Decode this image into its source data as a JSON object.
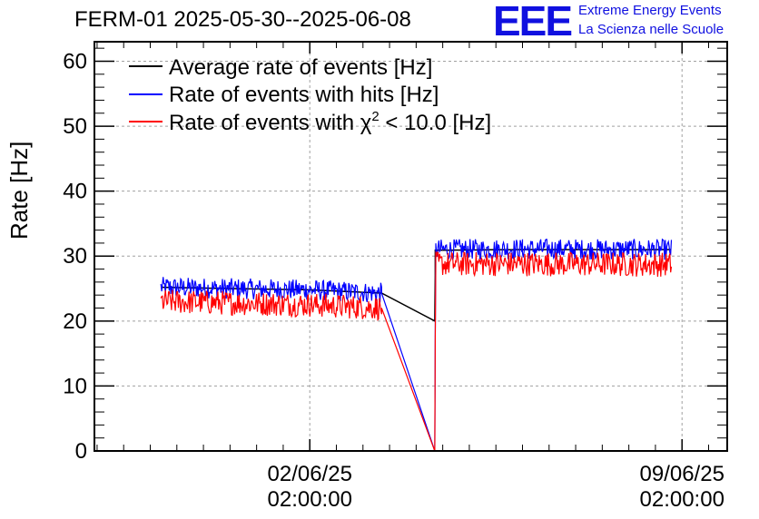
{
  "chart_data": {
    "type": "line",
    "title": "FERM-01 2025-05-30--2025-06-08",
    "ylabel": "Rate [Hz]",
    "xlabel": "",
    "ylim": [
      0,
      63
    ],
    "yticks": [
      0,
      10,
      20,
      30,
      40,
      50,
      60
    ],
    "xticks": [
      {
        "date": "02/06/25",
        "time": "02:00:00",
        "pos_days": 3.0
      },
      {
        "date": "09/06/25",
        "time": "02:00:00",
        "pos_days": 10.0
      }
    ],
    "xlim_days": [
      -1.05,
      10.85
    ],
    "grid": true,
    "legend_position": "top-left",
    "series": [
      {
        "name": "Average rate of events [Hz]",
        "color": "#000000",
        "points": [
          [
            0.2,
            25.2
          ],
          [
            1.5,
            25.0
          ],
          [
            3.0,
            24.8
          ],
          [
            4.35,
            24.3
          ],
          [
            5.35,
            20.0
          ],
          [
            5.36,
            27.0
          ],
          [
            5.36,
            30.9
          ],
          [
            7.0,
            31.0
          ],
          [
            9.8,
            31.0
          ]
        ]
      },
      {
        "name": "Rate of events with hits [Hz]",
        "color": "#0000ff",
        "points": [
          [
            0.2,
            25.2
          ],
          [
            1.5,
            25.0
          ],
          [
            3.0,
            24.8
          ],
          [
            4.35,
            24.3
          ],
          [
            5.35,
            0.0
          ],
          [
            5.36,
            18.0
          ],
          [
            5.37,
            31.0
          ],
          [
            7.0,
            31.1
          ],
          [
            9.8,
            31.0
          ]
        ]
      },
      {
        "name": "Rate of events with χ² < 10.0 [Hz]",
        "color": "#ff0000",
        "points": [
          [
            0.2,
            23.0
          ],
          [
            1.5,
            22.8
          ],
          [
            3.0,
            22.5
          ],
          [
            4.35,
            22.0
          ],
          [
            5.35,
            0.0
          ],
          [
            5.36,
            17.0
          ],
          [
            5.37,
            28.8
          ],
          [
            7.0,
            28.8
          ],
          [
            9.8,
            28.7
          ]
        ]
      }
    ]
  },
  "legend": {
    "avg": "Average rate of events [Hz]",
    "hits": "Rate of events with hits [Hz]",
    "chi2_prefix": "Rate of events with ",
    "chi": "χ",
    "chi_sup": "2",
    "chi2_suffix": " < 10.0 [Hz]"
  },
  "logo": {
    "mark": "EEE",
    "line1": "Extreme Energy Events",
    "line2": "La Scienza nelle Scuole",
    "color": "#1010e0"
  }
}
